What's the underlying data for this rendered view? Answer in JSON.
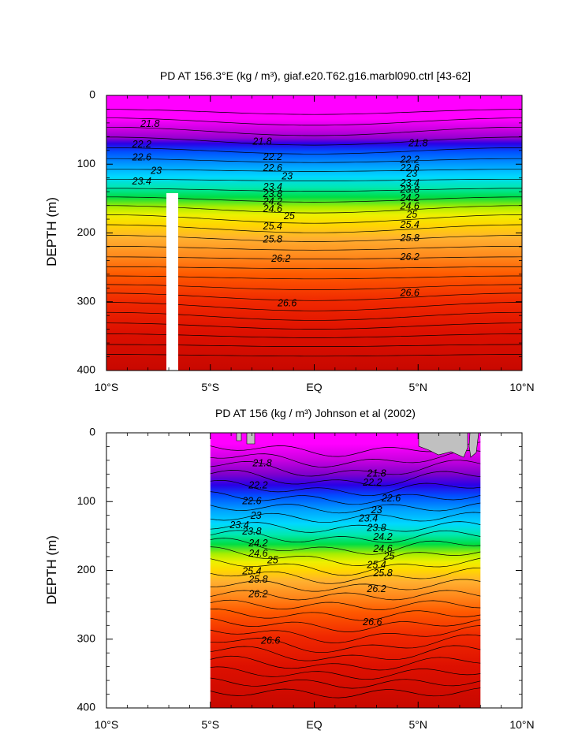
{
  "chart_data": [
    {
      "type": "contour",
      "title": "PD AT 156.3°E (kg / m³), giaf.e20.T62.g16.marbl090.ctrl [43-62]",
      "ylabel": "DEPTH (m)",
      "xlim": [
        -10,
        10
      ],
      "ylim": [
        400,
        0
      ],
      "x_ticks": [
        "10°S",
        "5°S",
        "EQ",
        "5°N",
        "10°N"
      ],
      "y_ticks": [
        0,
        100,
        200,
        300,
        400
      ],
      "data_xrange": [
        -10,
        10
      ],
      "contour_levels": [
        21.8,
        22.2,
        22.6,
        23,
        23.4,
        23.8,
        24.2,
        24.6,
        25,
        25.4,
        25.8,
        26.2,
        26.6
      ],
      "contour_labels": [
        {
          "text": "21.8",
          "x": -7.9,
          "y": 42
        },
        {
          "text": "22.2",
          "x": -8.3,
          "y": 72
        },
        {
          "text": "22.6",
          "x": -8.3,
          "y": 91
        },
        {
          "text": "23",
          "x": -7.6,
          "y": 110
        },
        {
          "text": "23.4",
          "x": -8.3,
          "y": 126
        },
        {
          "text": "21.8",
          "x": -2.5,
          "y": 68
        },
        {
          "text": "22.2",
          "x": -2.0,
          "y": 90
        },
        {
          "text": "22.6",
          "x": -2.0,
          "y": 106
        },
        {
          "text": "23",
          "x": -1.3,
          "y": 118
        },
        {
          "text": "23.4",
          "x": -2.0,
          "y": 134
        },
        {
          "text": "23.8",
          "x": -2.0,
          "y": 144
        },
        {
          "text": "24.2",
          "x": -2.0,
          "y": 155
        },
        {
          "text": "24.6",
          "x": -2.0,
          "y": 166
        },
        {
          "text": "25",
          "x": -1.2,
          "y": 176
        },
        {
          "text": "25.4",
          "x": -2.0,
          "y": 191
        },
        {
          "text": "25.8",
          "x": -2.0,
          "y": 210
        },
        {
          "text": "26.2",
          "x": -1.6,
          "y": 238
        },
        {
          "text": "26.6",
          "x": -1.3,
          "y": 303
        },
        {
          "text": "21.8",
          "x": 5.0,
          "y": 70
        },
        {
          "text": "22.2",
          "x": 4.6,
          "y": 94
        },
        {
          "text": "22.6",
          "x": 4.6,
          "y": 106
        },
        {
          "text": "23",
          "x": 4.7,
          "y": 114
        },
        {
          "text": "23.4",
          "x": 4.6,
          "y": 128
        },
        {
          "text": "23.8",
          "x": 4.6,
          "y": 138
        },
        {
          "text": "24.2",
          "x": 4.6,
          "y": 150
        },
        {
          "text": "24.6",
          "x": 4.6,
          "y": 162
        },
        {
          "text": "25",
          "x": 4.7,
          "y": 174
        },
        {
          "text": "25.4",
          "x": 4.6,
          "y": 189
        },
        {
          "text": "25.8",
          "x": 4.6,
          "y": 208
        },
        {
          "text": "26.2",
          "x": 4.6,
          "y": 236
        },
        {
          "text": "26.6",
          "x": 4.6,
          "y": 288
        }
      ]
    },
    {
      "type": "contour",
      "title": "PD AT 156 (kg / m³) Johnson et al (2002)",
      "ylabel": "DEPTH (m)",
      "xlim": [
        -10,
        10
      ],
      "ylim": [
        400,
        0
      ],
      "x_ticks": [
        "10°S",
        "5°S",
        "EQ",
        "5°N",
        "10°N"
      ],
      "y_ticks": [
        0,
        100,
        200,
        300,
        400
      ],
      "data_xrange": [
        -5,
        8
      ],
      "contour_levels": [
        21.8,
        22.2,
        22.6,
        23,
        23.4,
        23.8,
        24.2,
        24.6,
        25,
        25.4,
        25.8,
        26.2,
        26.6
      ],
      "contour_labels": [
        {
          "text": "21.8",
          "x": -2.5,
          "y": 45
        },
        {
          "text": "22.2",
          "x": -2.7,
          "y": 77
        },
        {
          "text": "22.6",
          "x": -3.0,
          "y": 100
        },
        {
          "text": "23",
          "x": -2.8,
          "y": 121
        },
        {
          "text": "23.4",
          "x": -3.6,
          "y": 135
        },
        {
          "text": "23.8",
          "x": -3.0,
          "y": 144
        },
        {
          "text": "24.2",
          "x": -2.7,
          "y": 161
        },
        {
          "text": "24.6",
          "x": -2.7,
          "y": 176
        },
        {
          "text": "25",
          "x": -2.0,
          "y": 186
        },
        {
          "text": "25.4",
          "x": -3.0,
          "y": 202
        },
        {
          "text": "25.8",
          "x": -2.7,
          "y": 214
        },
        {
          "text": "26.2",
          "x": -2.7,
          "y": 235
        },
        {
          "text": "26.6",
          "x": -2.1,
          "y": 303
        },
        {
          "text": "21.8",
          "x": 3.0,
          "y": 60
        },
        {
          "text": "22.2",
          "x": 2.8,
          "y": 73
        },
        {
          "text": "22.6",
          "x": 3.7,
          "y": 96
        },
        {
          "text": "23",
          "x": 3.0,
          "y": 113
        },
        {
          "text": "23.4",
          "x": 2.6,
          "y": 125
        },
        {
          "text": "23.8",
          "x": 3.0,
          "y": 139
        },
        {
          "text": "24.2",
          "x": 3.3,
          "y": 152
        },
        {
          "text": "24.6",
          "x": 3.3,
          "y": 169
        },
        {
          "text": "25",
          "x": 3.6,
          "y": 180
        },
        {
          "text": "25.4",
          "x": 3.0,
          "y": 193
        },
        {
          "text": "25.8",
          "x": 3.3,
          "y": 205
        },
        {
          "text": "26.2",
          "x": 3.0,
          "y": 228
        },
        {
          "text": "26.6",
          "x": 2.8,
          "y": 276
        }
      ]
    }
  ],
  "colors": {
    "palette": [
      "#ff00ff",
      "#dd00ee",
      "#b400d0",
      "#7a00c8",
      "#2a00e6",
      "#0030ff",
      "#0078ff",
      "#00aaff",
      "#00d0ff",
      "#00e8cc",
      "#00ee88",
      "#00dd44",
      "#44e000",
      "#a8ee00",
      "#eef000",
      "#ffd700",
      "#ffbe1e",
      "#ffa53c",
      "#ff8c1e",
      "#ff6e0a",
      "#ff4a00",
      "#f02800",
      "#e01000",
      "#d00c00",
      "#c80800"
    ],
    "land_mask": "#c0c0c0"
  }
}
